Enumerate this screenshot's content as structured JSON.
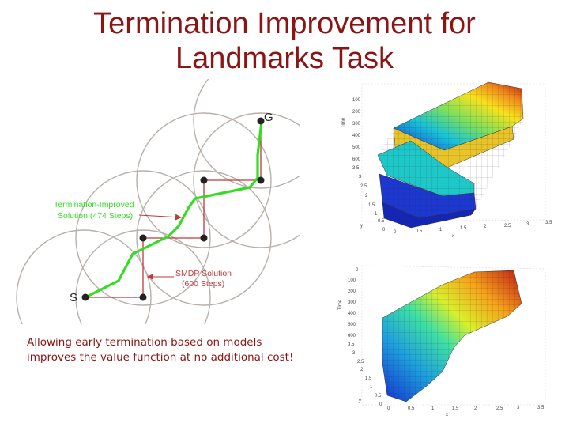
{
  "slide": {
    "title_line1": "Termination Improvement for",
    "title_line2": "Landmarks Task",
    "caption": "Allowing early termination based on models improves the value function at no additional cost!"
  },
  "diagram": {
    "start_label": "S",
    "goal_label": "G",
    "improved_label_line1": "Termination-Improved",
    "improved_label_line2": "Solution (474 Steps)",
    "smdp_label_line1": "SMDP Solution",
    "smdp_label_line2": "(600 Steps)",
    "colors": {
      "title": "#8b1414",
      "improved_path": "#33dd22",
      "smdp_path": "#c0383a",
      "circles": "#b8b0aa",
      "landmark": "#222222"
    }
  },
  "plot_top": {
    "z_ticks": [
      "100",
      "200",
      "300",
      "400",
      "500",
      "600"
    ],
    "y_ticks": [
      "3.5",
      "3",
      "2.5",
      "2",
      "1.5",
      "1",
      "0.5",
      "0"
    ],
    "x_ticks": [
      "0",
      "0.5",
      "1",
      "1.5",
      "2",
      "2.5",
      "3",
      "3.5"
    ],
    "x_label": "x",
    "y_label": "y",
    "z_label": "Time"
  },
  "plot_bottom": {
    "z_ticks": [
      "0",
      "100",
      "200",
      "300",
      "400",
      "500",
      "600"
    ],
    "y_ticks": [
      "3.5",
      "3",
      "2.5",
      "2",
      "1.5",
      "1",
      "0.5",
      "0"
    ],
    "x_ticks": [
      "0",
      "0.5",
      "1",
      "1.5",
      "2",
      "2.5",
      "3",
      "3.5"
    ],
    "x_label": "x",
    "y_label": "y",
    "z_label": "Time"
  }
}
